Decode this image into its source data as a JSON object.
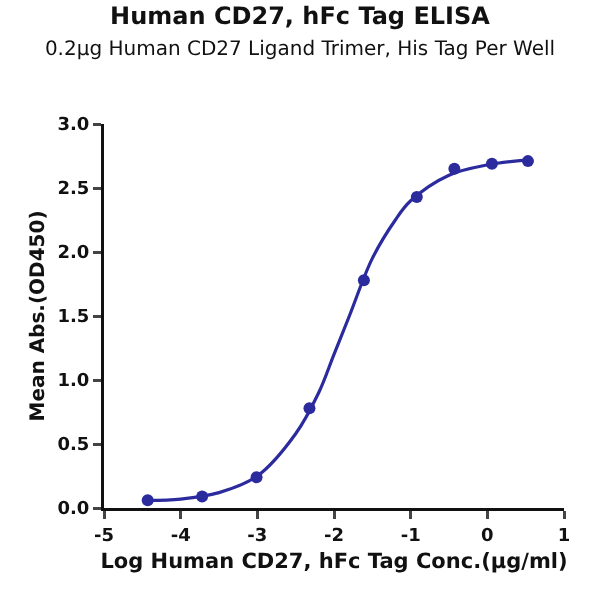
{
  "chart_data": {
    "type": "scatter",
    "title": "Human CD27, hFc Tag ELISA",
    "subtitle": "0.2μg Human CD27 Ligand Trimer, His Tag Per Well",
    "xlabel": "Log Human CD27, hFc Tag Conc.(μg/ml)",
    "ylabel": "Mean Abs.(OD450)",
    "series": [
      {
        "color": "#2b2b9e",
        "marker": "circle",
        "x": [
          -4.43,
          -3.72,
          -3.01,
          -2.32,
          -1.61,
          -0.92,
          -0.43,
          0.06,
          0.53
        ],
        "values": [
          0.06,
          0.09,
          0.24,
          0.78,
          1.78,
          2.43,
          2.65,
          2.69,
          2.71
        ]
      },
      {
        "type": "line",
        "color": "#2b2b9e",
        "marker": "none",
        "x": [
          -4.43,
          -4,
          -3.5,
          -3,
          -2.5,
          -2.2,
          -2,
          -1.8,
          -1.5,
          -1.2,
          -1,
          -0.5,
          0,
          0.53
        ],
        "values": [
          0.06,
          0.07,
          0.12,
          0.25,
          0.58,
          0.9,
          1.2,
          1.5,
          1.95,
          2.25,
          2.4,
          2.6,
          2.68,
          2.72
        ]
      }
    ],
    "xlim": [
      -5,
      1
    ],
    "xticks": [
      -5,
      -4,
      -3,
      -2,
      -1,
      0,
      1
    ],
    "ylim": [
      0,
      3
    ],
    "yticks": [
      {
        "value": 0,
        "label": "0.0"
      },
      0.5,
      {
        "value": 1,
        "label": "1.0"
      },
      1.5,
      {
        "value": 2,
        "label": "2.0"
      },
      2.5,
      {
        "value": 3,
        "label": "3.0"
      }
    ],
    "grid": false
  }
}
